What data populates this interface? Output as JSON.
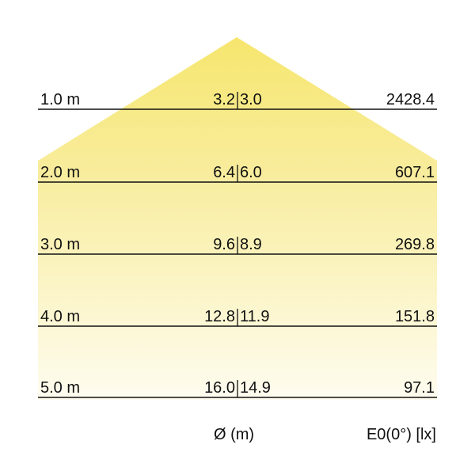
{
  "colors": {
    "cone_top": "#f6e66e",
    "cone_bottom": "#fefcf0",
    "line": "#111111"
  },
  "rows": [
    {
      "distance": "1.0 m",
      "diameter_c0": "3.2",
      "diameter_c90": "3.0",
      "illuminance": "2428.4"
    },
    {
      "distance": "2.0 m",
      "diameter_c0": "6.4",
      "diameter_c90": "6.0",
      "illuminance": "607.1"
    },
    {
      "distance": "3.0 m",
      "diameter_c0": "9.6",
      "diameter_c90": "8.9",
      "illuminance": "269.8"
    },
    {
      "distance": "4.0 m",
      "diameter_c0": "12.8",
      "diameter_c90": "11.9",
      "illuminance": "151.8"
    },
    {
      "distance": "5.0 m",
      "diameter_c0": "16.0",
      "diameter_c90": "14.9",
      "illuminance": "97.1"
    }
  ],
  "footer": {
    "diameter_label": "Ø (m)",
    "illuminance_label": "E0(0°) [lx]"
  }
}
